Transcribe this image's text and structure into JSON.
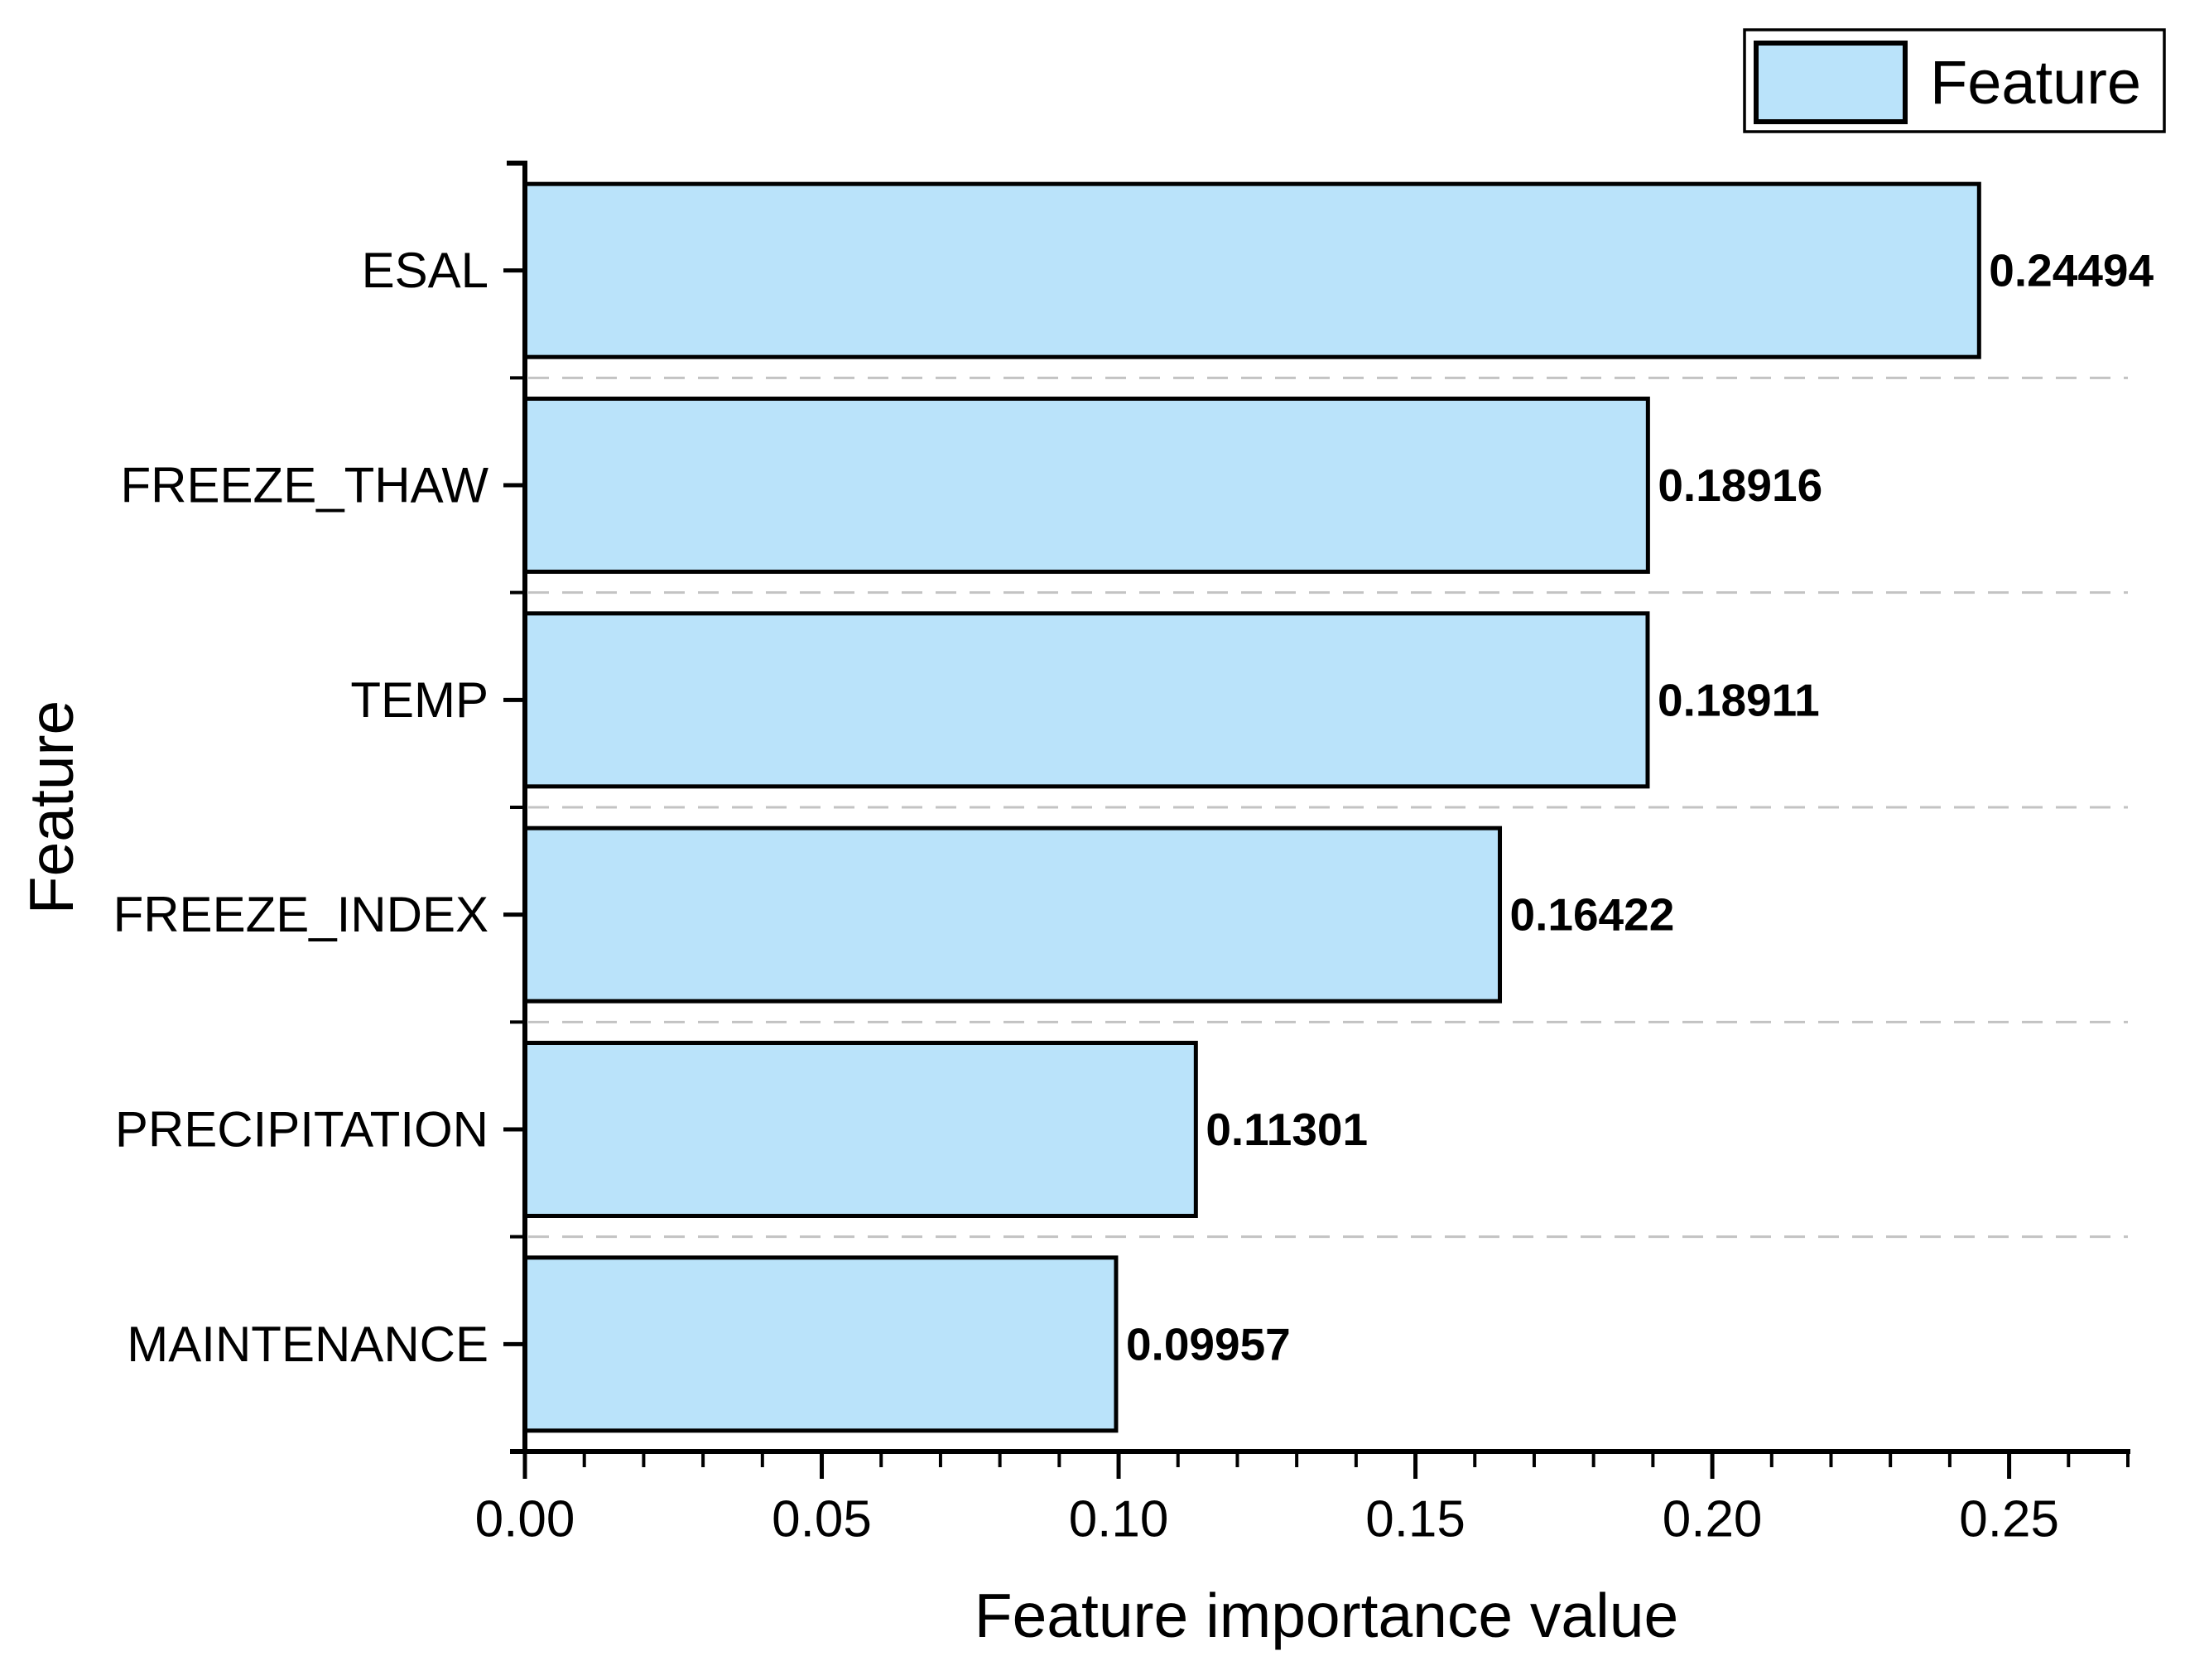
{
  "chart_data": {
    "type": "bar",
    "orientation": "horizontal",
    "title": "",
    "xlabel": "Feature importance value",
    "ylabel": "Feature",
    "legend": {
      "position": "top-right",
      "entries": [
        {
          "label": "Feature",
          "swatch_fill": "#bae3fa",
          "swatch_border": "#000000"
        }
      ]
    },
    "categories": [
      "ESAL",
      "FREEZE_THAW",
      "TEMP",
      "FREEZE_INDEX",
      "PRECIPITATION",
      "MAINTENANCE"
    ],
    "values": [
      0.24494,
      0.18916,
      0.18911,
      0.16422,
      0.11301,
      0.09957
    ],
    "value_labels": [
      "0.24494",
      "0.18916",
      "0.18911",
      "0.16422",
      "0.11301",
      "0.09957"
    ],
    "xlim": [
      0,
      0.27
    ],
    "x_major_ticks": [
      0.0,
      0.05,
      0.1,
      0.15,
      0.2,
      0.25
    ],
    "x_tick_labels": [
      "0.00",
      "0.05",
      "0.10",
      "0.15",
      "0.20",
      "0.25"
    ],
    "x_minor_step": 0.01,
    "grid": {
      "horizontal_dashed_lines_at_category_boundaries": true,
      "count": 5
    },
    "colors": {
      "bar_fill": "#bae3fa",
      "bar_border": "#000000",
      "axis": "#000000",
      "grid": "#c3c3c3",
      "text": "#000000",
      "background": "#ffffff",
      "legend_border": "#000000",
      "legend_fill": "#ffffff"
    }
  }
}
